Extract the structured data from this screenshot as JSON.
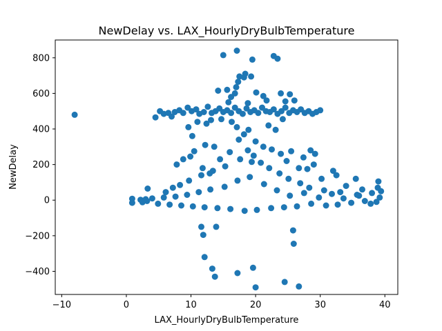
{
  "chart_data": {
    "type": "scatter",
    "title": "NewDelay vs. LAX_HourlyDryBulbTemperature",
    "xlabel": "LAX_HourlyDryBulbTemperature",
    "ylabel": "NewDelay",
    "xlim": [
      -11,
      42
    ],
    "ylim": [
      -530,
      900
    ],
    "xticks": [
      -10,
      0,
      10,
      20,
      30,
      40
    ],
    "yticks": [
      -400,
      -200,
      0,
      200,
      400,
      600,
      800
    ],
    "grid": false,
    "legend": "none",
    "color": "#1f77b4",
    "points": [
      [
        -8,
        480
      ],
      [
        0.9,
        8
      ],
      [
        0.9,
        -15
      ],
      [
        2.2,
        2
      ],
      [
        2.5,
        -12
      ],
      [
        3.0,
        5
      ],
      [
        3.3,
        65
      ],
      [
        4.5,
        465
      ],
      [
        5.2,
        500
      ],
      [
        5.8,
        485
      ],
      [
        6.5,
        490
      ],
      [
        7.0,
        470
      ],
      [
        7.5,
        495
      ],
      [
        8.2,
        505
      ],
      [
        8.8,
        490
      ],
      [
        9.5,
        520
      ],
      [
        10.1,
        500
      ],
      [
        10.8,
        510
      ],
      [
        11.3,
        485
      ],
      [
        12.0,
        495
      ],
      [
        12.6,
        525
      ],
      [
        13.2,
        490
      ],
      [
        13.8,
        500
      ],
      [
        14.4,
        515
      ],
      [
        15.0,
        495
      ],
      [
        15.6,
        505
      ],
      [
        16.2,
        490
      ],
      [
        16.8,
        520
      ],
      [
        17.4,
        500
      ],
      [
        18.0,
        485
      ],
      [
        18.6,
        515
      ],
      [
        19.2,
        495
      ],
      [
        19.8,
        505
      ],
      [
        20.4,
        490
      ],
      [
        21.0,
        520
      ],
      [
        21.6,
        500
      ],
      [
        22.2,
        495
      ],
      [
        22.8,
        510
      ],
      [
        23.4,
        485
      ],
      [
        24.0,
        500
      ],
      [
        24.6,
        520
      ],
      [
        25.2,
        490
      ],
      [
        25.8,
        505
      ],
      [
        26.4,
        495
      ],
      [
        27.0,
        510
      ],
      [
        27.6,
        490
      ],
      [
        28.2,
        500
      ],
      [
        28.8,
        485
      ],
      [
        29.4,
        495
      ],
      [
        30.0,
        505
      ],
      [
        9.6,
        410
      ],
      [
        10.2,
        360
      ],
      [
        11.0,
        440
      ],
      [
        12.4,
        430
      ],
      [
        13.1,
        450
      ],
      [
        14.7,
        455
      ],
      [
        16.3,
        440
      ],
      [
        17.1,
        410
      ],
      [
        18.9,
        395
      ],
      [
        22.0,
        420
      ],
      [
        23.1,
        395
      ],
      [
        24.2,
        455
      ],
      [
        9.9,
        245
      ],
      [
        10.5,
        275
      ],
      [
        12.2,
        310
      ],
      [
        13.6,
        300
      ],
      [
        16.0,
        270
      ],
      [
        17.4,
        340
      ],
      [
        18.2,
        370
      ],
      [
        20.0,
        330
      ],
      [
        21.2,
        300
      ],
      [
        22.5,
        285
      ],
      [
        23.9,
        260
      ],
      [
        25.5,
        275
      ],
      [
        27.4,
        240
      ],
      [
        28.5,
        280
      ],
      [
        29.2,
        260
      ],
      [
        29.0,
        200
      ],
      [
        28.0,
        175
      ],
      [
        32.0,
        165
      ],
      [
        32.5,
        140
      ],
      [
        35.5,
        120
      ],
      [
        39.0,
        105
      ],
      [
        36.5,
        60
      ],
      [
        38.0,
        40
      ],
      [
        7.8,
        200
      ],
      [
        8.8,
        230
      ],
      [
        11.8,
        180
      ],
      [
        12.9,
        150
      ],
      [
        14.5,
        230
      ],
      [
        19.4,
        215
      ],
      [
        24.8,
        220
      ],
      [
        26.7,
        180
      ],
      [
        30.2,
        120
      ],
      [
        34.0,
        80
      ],
      [
        38.9,
        70
      ],
      [
        39.4,
        50
      ],
      [
        39.2,
        15
      ],
      [
        38.7,
        -10
      ],
      [
        37.8,
        -20
      ],
      [
        36.9,
        -5
      ],
      [
        35.7,
        30
      ],
      [
        34.8,
        -15
      ],
      [
        33.6,
        10
      ],
      [
        32.7,
        -25
      ],
      [
        31.8,
        35
      ],
      [
        30.9,
        -30
      ],
      [
        29.8,
        15
      ],
      [
        28.6,
        -20
      ],
      [
        27.5,
        40
      ],
      [
        26.4,
        -35
      ],
      [
        25.3,
        25
      ],
      [
        24.4,
        -40
      ],
      [
        23.3,
        55
      ],
      [
        22.4,
        -45
      ],
      [
        21.3,
        90
      ],
      [
        20.2,
        -55
      ],
      [
        19.1,
        130
      ],
      [
        18.3,
        -60
      ],
      [
        17.2,
        110
      ],
      [
        16.1,
        -50
      ],
      [
        15.2,
        75
      ],
      [
        14.1,
        -45
      ],
      [
        13.0,
        60
      ],
      [
        12.1,
        -40
      ],
      [
        11.2,
        45
      ],
      [
        10.3,
        -35
      ],
      [
        9.4,
        30
      ],
      [
        8.5,
        -30
      ],
      [
        7.6,
        20
      ],
      [
        6.7,
        -25
      ],
      [
        5.8,
        15
      ],
      [
        4.9,
        -20
      ],
      [
        4.0,
        10
      ],
      [
        3.2,
        -5
      ],
      [
        6.1,
        45
      ],
      [
        7.2,
        70
      ],
      [
        8.3,
        85
      ],
      [
        9.7,
        110
      ],
      [
        11.6,
        140
      ],
      [
        13.4,
        165
      ],
      [
        15.3,
        190
      ],
      [
        17.6,
        230
      ],
      [
        18.8,
        280
      ],
      [
        19.7,
        250
      ],
      [
        20.8,
        210
      ],
      [
        22.1,
        180
      ],
      [
        23.7,
        150
      ],
      [
        25.1,
        120
      ],
      [
        26.9,
        95
      ],
      [
        28.3,
        70
      ],
      [
        30.6,
        55
      ],
      [
        33.1,
        45
      ],
      [
        36.0,
        25
      ],
      [
        11.6,
        -150
      ],
      [
        11.9,
        -195
      ],
      [
        12.1,
        -320
      ],
      [
        13.3,
        -385
      ],
      [
        13.7,
        -430
      ],
      [
        13.9,
        -150
      ],
      [
        17.2,
        -410
      ],
      [
        19.6,
        -380
      ],
      [
        20.0,
        -490
      ],
      [
        24.5,
        -460
      ],
      [
        25.8,
        -170
      ],
      [
        25.9,
        -245
      ],
      [
        26.7,
        -485
      ],
      [
        14.2,
        615
      ],
      [
        15.0,
        815
      ],
      [
        15.6,
        620
      ],
      [
        16.2,
        580
      ],
      [
        16.8,
        600
      ],
      [
        17.3,
        665
      ],
      [
        17.5,
        695
      ],
      [
        17.1,
        840
      ],
      [
        18.2,
        690
      ],
      [
        18.4,
        710
      ],
      [
        19.3,
        695
      ],
      [
        19.5,
        790
      ],
      [
        20.1,
        605
      ],
      [
        21.2,
        585
      ],
      [
        22.8,
        810
      ],
      [
        23.9,
        600
      ],
      [
        23.4,
        795
      ],
      [
        24.6,
        555
      ],
      [
        25.3,
        595
      ],
      [
        26.0,
        560
      ],
      [
        17.0,
        635
      ],
      [
        15.8,
        550
      ],
      [
        18.8,
        545
      ],
      [
        21.7,
        560
      ]
    ]
  }
}
